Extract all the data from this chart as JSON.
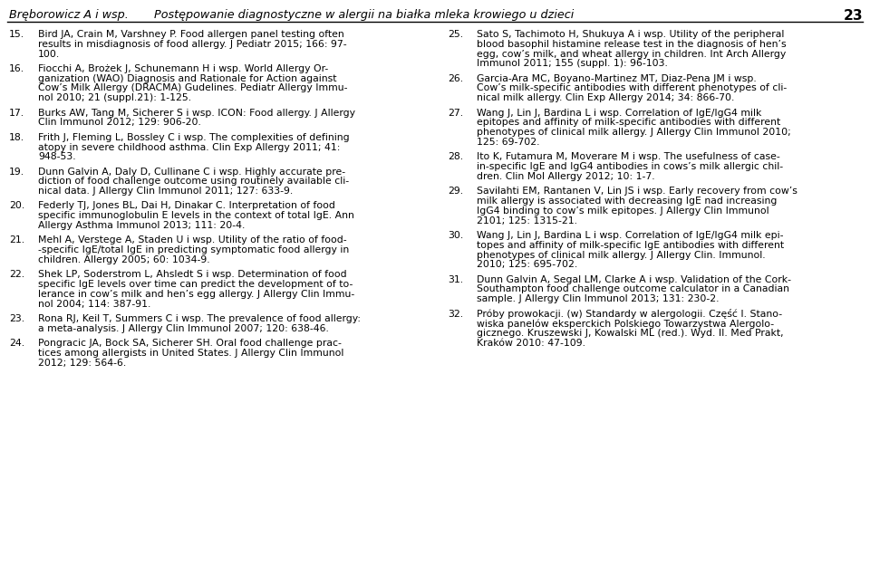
{
  "header_left": "Bręborowicz A i wsp.",
  "header_title": "Postępowanie diagnostyczne w alergii na białka mleka krowiego u dzieci",
  "header_page": "23",
  "bg_color": "#ffffff",
  "text_color": "#000000",
  "header_color": "#000000",
  "font_size": 7.8,
  "header_font_size": 9.2,
  "left_refs": [
    [
      "15.",
      "Bird JA, Crain M, Varshney P. Food allergen panel testing often\nresults in misdiagnosis of food allergy. J Pediatr 2015; 166: 97-\n100."
    ],
    [
      "16.",
      "Fiocchi A, Brożek J, Schunemann H i wsp. World Allergy Or-\nganization (WAO) Diagnosis and Rationale for Action against\nCow’s Milk Allergy (DRACMA) Gudelines. Pediatr Allergy Immu-\nnol 2010; 21 (suppl.21): 1-125."
    ],
    [
      "17.",
      "Burks AW, Tang M, Sicherer S i wsp. ICON: Food allergy. J Allergy\nClin Immunol 2012; 129: 906-20."
    ],
    [
      "18.",
      "Frith J, Fleming L, Bossley C i wsp. The complexities of defining\natopy in severe childhood asthma. Clin Exp Allergy 2011; 41:\n948-53."
    ],
    [
      "19.",
      "Dunn Galvin A, Daly D, Cullinane C i wsp. Highly accurate pre-\ndiction of food challenge outcome using routinely available cli-\nnical data. J Allergy Clin Immunol 2011; 127: 633-9."
    ],
    [
      "20.",
      "Federly TJ, Jones BL, Dai H, Dinakar C. Interpretation of food\nspecific immunoglobulin E levels in the context of total IgE. Ann\nAllergy Asthma Immunol 2013; 111: 20-4."
    ],
    [
      "21.",
      "Mehl A, Verstege A, Staden U i wsp. Utility of the ratio of food-\n-specific IgE/total IgE in predicting symptomatic food allergy in\nchildren. Allergy 2005; 60: 1034-9."
    ],
    [
      "22.",
      "Shek LP, Soderstrom L, Ahsledt S i wsp. Determination of food\nspecific IgE levels over time can predict the development of to-\nlerance in cow’s milk and hen’s egg allergy. J Allergy Clin Immu-\nnol 2004; 114: 387-91."
    ],
    [
      "23.",
      "Rona RJ, Keil T, Summers C i wsp. The prevalence of food allergy:\na meta-analysis. J Allergy Clin Immunol 2007; 120: 638-46."
    ],
    [
      "24.",
      "Pongracic JA, Bock SA, Sicherer SH. Oral food challenge prac-\ntices among allergists in United States. J Allergy Clin Immunol\n2012; 129: 564-6."
    ]
  ],
  "right_refs": [
    [
      "25.",
      "Sato S, Tachimoto H, Shukuya A i wsp. Utility of the peripheral\nblood basophil histamine release test in the diagnosis of hen’s\negg, cow’s milk, and wheat allergy in children. Int Arch Allergy\nImmunol 2011; 155 (suppl. 1): 96-103."
    ],
    [
      "26.",
      "Garcia-Ara MC, Boyano-Martinez MT, Diaz-Pena JM i wsp.\nCow’s milk-specific antibodies with different phenotypes of cli-\nnical milk allergy. Clin Exp Allergy 2014; 34: 866-70."
    ],
    [
      "27.",
      "Wang J, Lin J, Bardina L i wsp. Correlation of IgE/IgG4 milk\nepitopes and affinity of milk-specific antibodies with different\nphenotypes of clinical milk allergy. J Allergy Clin Immunol 2010;\n125: 69-702."
    ],
    [
      "28.",
      "Ito K, Futamura M, Moverare M i wsp. The usefulness of case-\nin-specific IgE and IgG4 antibodies in cows’s milk allergic chil-\ndren. Clin Mol Allergy 2012; 10: 1-7."
    ],
    [
      "29.",
      "Savilahti EM, Rantanen V, Lin JS i wsp. Early recovery from cow’s\nmilk allergy is associated with decreasing IgE nad increasing\nIgG4 binding to cow’s milk epitopes. J Allergy Clin Immunol\n2101; 125: 1315-21."
    ],
    [
      "30.",
      "Wang J, Lin J, Bardina L i wsp. Correlation of IgE/IgG4 milk epi-\ntopes and affinity of milk-specific IgE antibodies with different\nphenotypes of clinical milk allergy. J Allergy Clin. Immunol.\n2010; 125: 695-702."
    ],
    [
      "31.",
      "Dunn Galvin A, Segal LM, Clarke A i wsp. Validation of the Cork-\nSouthampton food challenge outcome calculator in a Canadian\nsample. J Allergy Clin Immunol 2013; 131: 230-2."
    ],
    [
      "32.",
      "Próby prowokacji. (w) Standardy w alergologii. Część I. Stano-\nwiska panelów eksperckich Polskiego Towarzystwa Alergolo-\ngicznego. Kruszewski J, Kowalski ML (red.). Wyd. II. Med Prakt,\nKraków 2010: 47-109."
    ]
  ]
}
